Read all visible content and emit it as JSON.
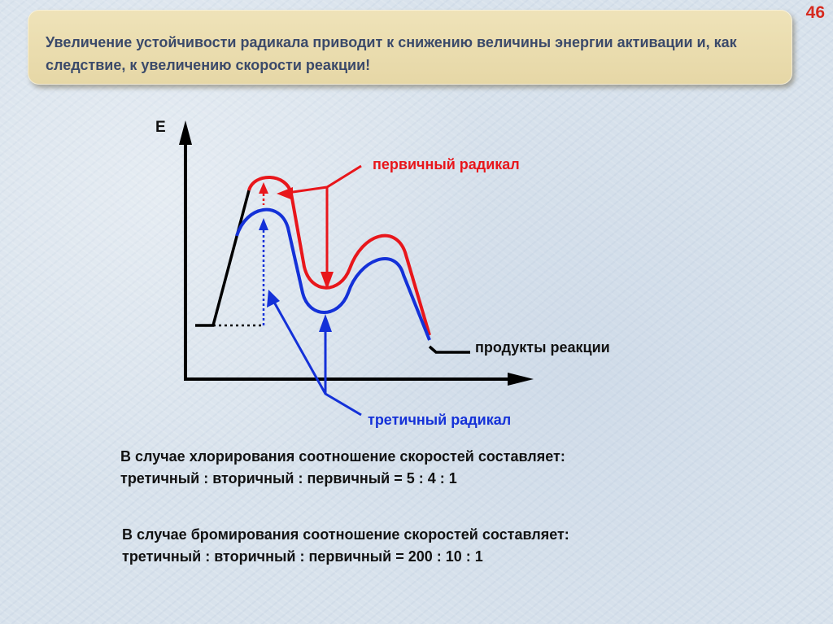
{
  "slide": {
    "number": "46",
    "title": "Увеличение устойчивости радикала приводит к снижению величины энергии активации и, как следствие, к увеличению скорости реакции!"
  },
  "diagram": {
    "y_axis_label": "E",
    "label_primary": "первичный радикал",
    "label_tertiary": "третичный радикал",
    "label_products": "продукты реакции",
    "colors": {
      "primary": "#e8161b",
      "tertiary": "#1431d8",
      "axes": "#000000"
    }
  },
  "notes": {
    "chlorination_line1": "В случае хлорирования соотношение скоростей составляет:",
    "chlorination_line2": "третичный : вторичный : первичный = 5 : 4 : 1",
    "bromination_line1": "В случае бромирования соотношение скоростей составляет:",
    "bromination_line2": "третичный : вторичный : первичный = 200 : 10 : 1"
  }
}
